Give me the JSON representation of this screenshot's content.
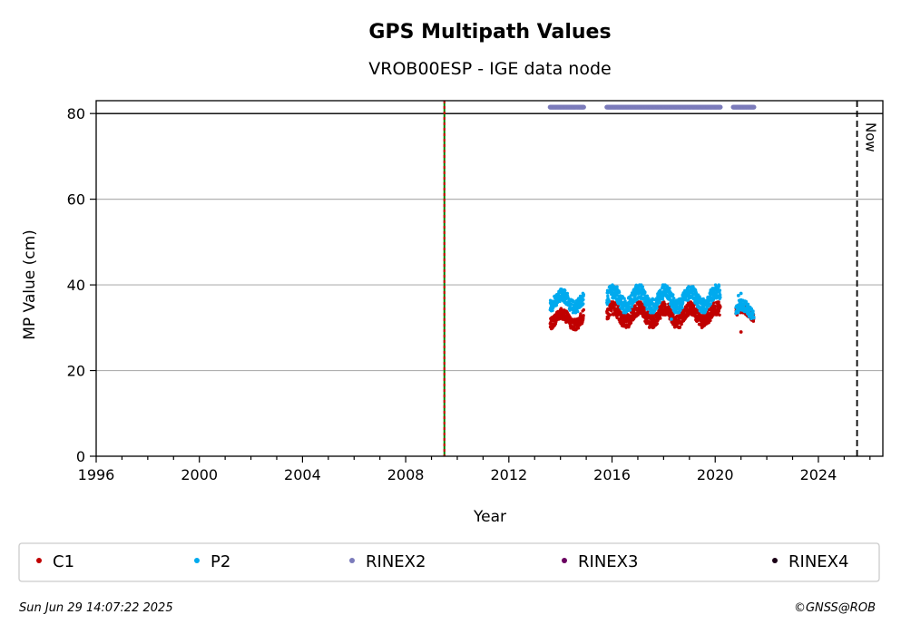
{
  "chart_data": {
    "type": "scatter",
    "title": "GPS Multipath Values",
    "subtitle": "VROB00ESP - IGE data node",
    "xlabel": "Year",
    "ylabel": "MP Value (cm)",
    "xlim": [
      1996.0,
      2026.5
    ],
    "ylim": [
      0,
      83
    ],
    "xticks": [
      "1996",
      "2000",
      "2004",
      "2008",
      "2012",
      "2016",
      "2020",
      "2024"
    ],
    "xtick_values": [
      1996,
      2000,
      2004,
      2008,
      2012,
      2016,
      2020,
      2024
    ],
    "yticks": [
      "0",
      "20",
      "40",
      "60",
      "80"
    ],
    "ytick_values": [
      0,
      20,
      40,
      60,
      80
    ],
    "grid": "horizontal",
    "hline": 80,
    "event_line": {
      "x": 2009.5,
      "colors": [
        "#008000",
        "#cc0000"
      ]
    },
    "now_line": {
      "x": 2025.5,
      "label": "Now"
    },
    "colors": {
      "C1": "#c00000",
      "P2": "#00aaee",
      "RINEX2": "#7b7bbb",
      "RINEX3": "#6a0060",
      "RINEX4": "#1a0015"
    },
    "series": [
      {
        "name": "C1",
        "segments": [
          {
            "x": [
              2013.6,
              2014.9
            ],
            "y": [
              29.5,
              34.5
            ]
          },
          {
            "x": [
              2015.8,
              2020.2
            ],
            "y": [
              30.0,
              36.0
            ]
          },
          {
            "x": [
              2020.8,
              2021.5
            ],
            "y": [
              31.5,
              35.5
            ]
          }
        ],
        "outliers": [
          [
            2021.0,
            29.0
          ]
        ]
      },
      {
        "name": "P2",
        "segments": [
          {
            "x": [
              2013.6,
              2014.9
            ],
            "y": [
              33.5,
              39.0
            ]
          },
          {
            "x": [
              2015.8,
              2020.2
            ],
            "y": [
              33.5,
              40.0
            ]
          },
          {
            "x": [
              2020.8,
              2021.5
            ],
            "y": [
              31.5,
              36.5
            ]
          }
        ],
        "outliers": [
          [
            2018.3,
            32.0
          ],
          [
            2021.0,
            38.0
          ],
          [
            2020.9,
            37.5
          ]
        ]
      },
      {
        "name": "RINEX2",
        "segments": [
          {
            "x": [
              2013.6,
              2014.9
            ],
            "y": [
              81.5,
              81.5
            ]
          },
          {
            "x": [
              2015.8,
              2020.2
            ],
            "y": [
              81.5,
              81.5
            ]
          },
          {
            "x": [
              2020.7,
              2021.5
            ],
            "y": [
              81.5,
              81.5
            ]
          }
        ]
      },
      {
        "name": "RINEX3",
        "segments": []
      },
      {
        "name": "RINEX4",
        "segments": []
      }
    ],
    "legend": [
      "C1",
      "P2",
      "RINEX2",
      "RINEX3",
      "RINEX4"
    ],
    "legend_position": "bottom"
  },
  "footer": {
    "timestamp": "Sun Jun 29 14:07:22 2025",
    "copyright": "©GNSS@ROB"
  }
}
